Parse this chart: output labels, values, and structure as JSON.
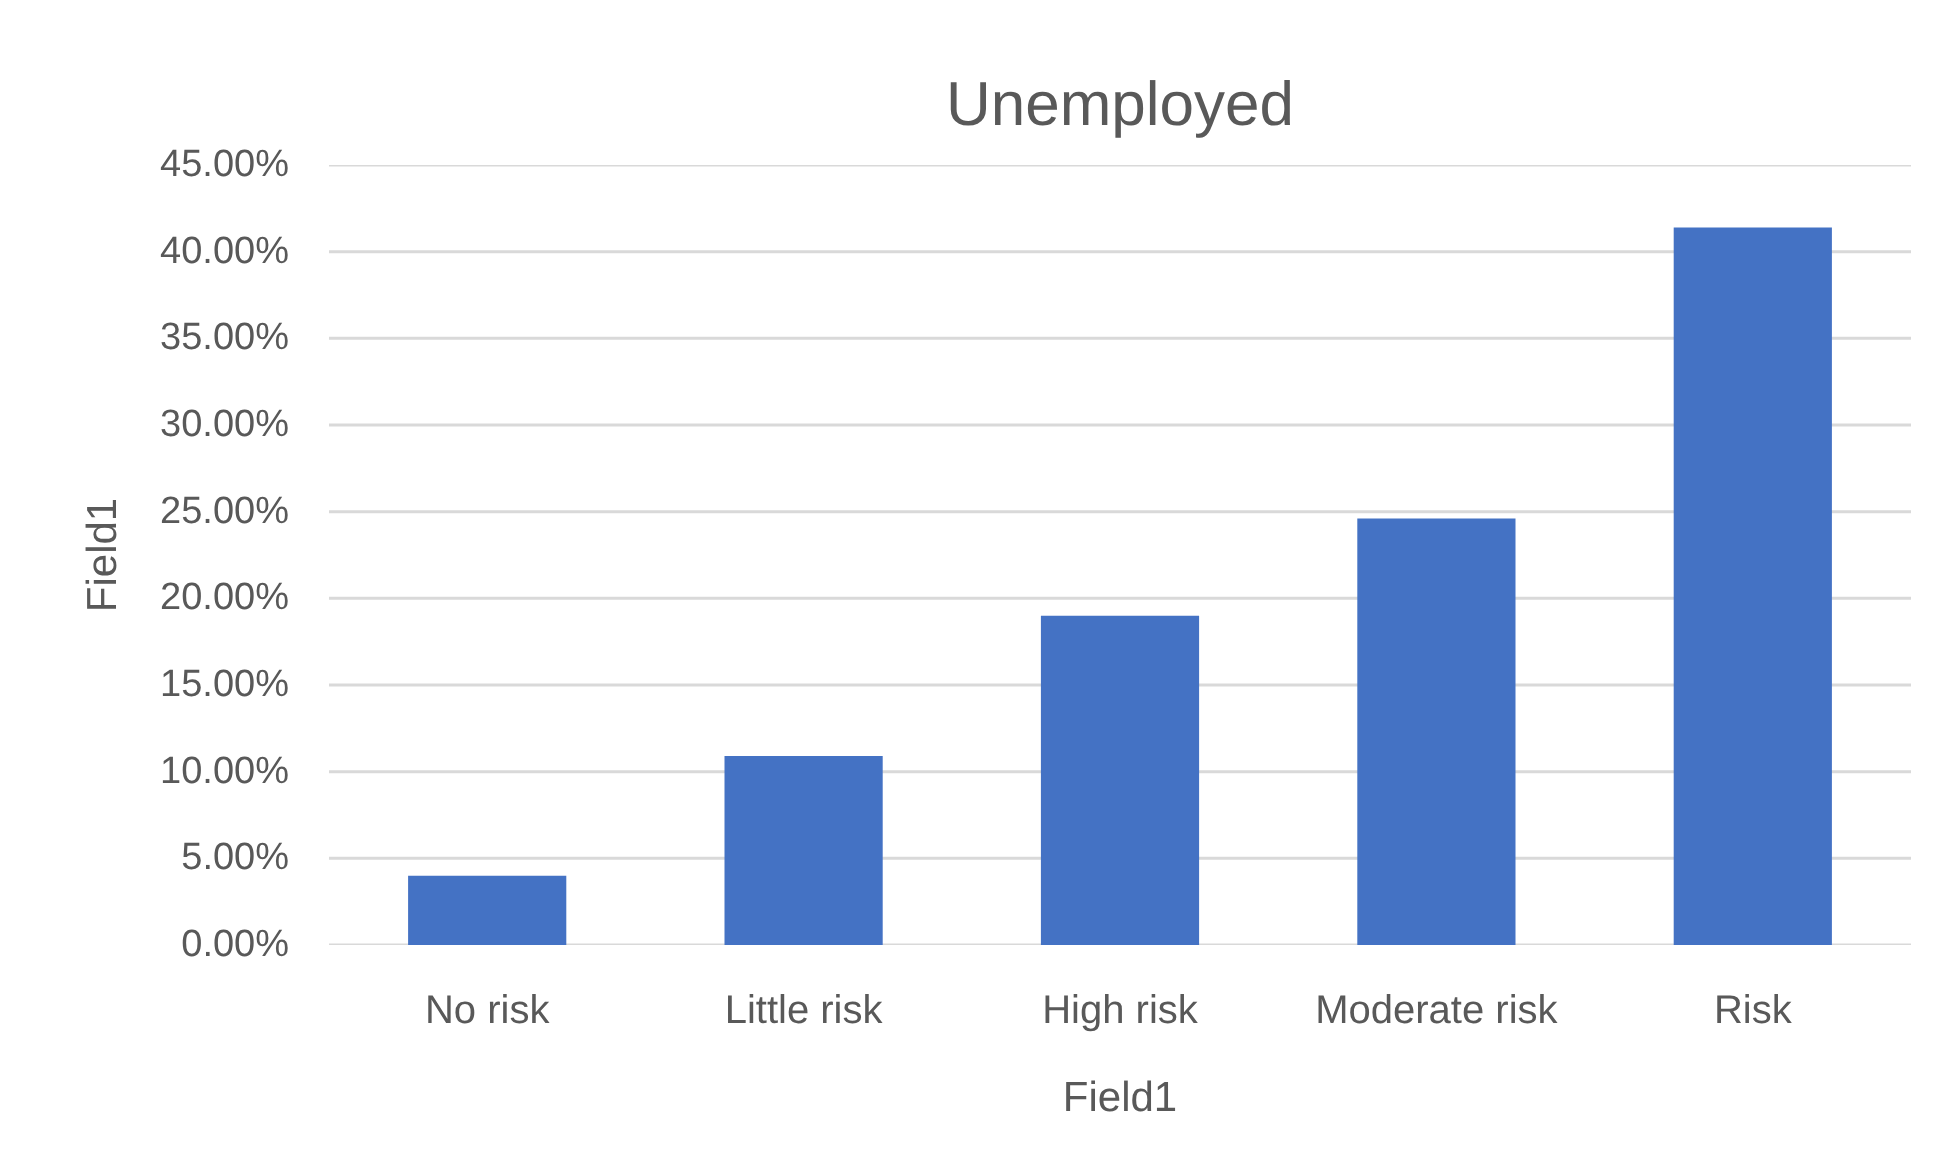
{
  "chart_data": {
    "type": "bar",
    "title": "Unemployed",
    "xlabel": "Field1",
    "ylabel": "Field1",
    "categories": [
      "No risk",
      "Little risk",
      "High risk",
      "Moderate risk",
      "Risk"
    ],
    "values": [
      4.0,
      10.9,
      19.0,
      24.6,
      41.4
    ],
    "color": "#4472c4",
    "ylim": [
      0,
      45
    ],
    "yticks": [
      {
        "value": 0,
        "label": "0.00%"
      },
      {
        "value": 5,
        "label": "5.00%"
      },
      {
        "value": 10,
        "label": "10.00%"
      },
      {
        "value": 15,
        "label": "15.00%"
      },
      {
        "value": 20,
        "label": "20.00%"
      },
      {
        "value": 25,
        "label": "25.00%"
      },
      {
        "value": 30,
        "label": "30.00%"
      },
      {
        "value": 35,
        "label": "35.00%"
      },
      {
        "value": 40,
        "label": "40.00%"
      },
      {
        "value": 45,
        "label": "45.00%"
      }
    ],
    "grid": "y"
  }
}
